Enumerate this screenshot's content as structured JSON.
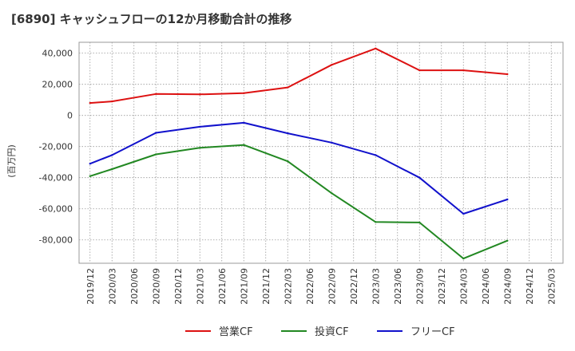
{
  "chart_data": {
    "type": "line",
    "title": "[6890]  キャッシュフローの12か月移動合計の推移",
    "ylabel": "(百万円)",
    "xlabel": "",
    "ylim": [
      -95000,
      47000
    ],
    "y_ticks": [
      40000,
      20000,
      0,
      -20000,
      -40000,
      -60000,
      -80000
    ],
    "y_tick_labels": [
      "40,000",
      "20,000",
      "0",
      "-20,000",
      "-40,000",
      "-60,000",
      "-80,000"
    ],
    "categories": [
      "2019/12",
      "2020/03",
      "2020/06",
      "2020/09",
      "2020/12",
      "2021/03",
      "2021/06",
      "2021/09",
      "2021/12",
      "2022/03",
      "2022/06",
      "2022/09",
      "2022/12",
      "2023/03",
      "2023/06",
      "2023/09",
      "2023/12",
      "2024/03",
      "2024/06",
      "2024/09",
      "2024/12",
      "2025/03"
    ],
    "x_domain": [
      -0.5,
      21.5
    ],
    "legend_position": "bottom",
    "grid": true,
    "series": [
      {
        "name": "営業CF",
        "color": "#dd1111",
        "points": [
          [
            0,
            8000
          ],
          [
            1,
            9000
          ],
          [
            3,
            13800
          ],
          [
            5,
            13500
          ],
          [
            7,
            14300
          ],
          [
            9,
            18000
          ],
          [
            11,
            32500
          ],
          [
            13,
            43000
          ],
          [
            15,
            29000
          ],
          [
            17,
            29000
          ],
          [
            19,
            26500
          ]
        ]
      },
      {
        "name": "投資CF",
        "color": "#228822",
        "points": [
          [
            0,
            -39000
          ],
          [
            1,
            -34500
          ],
          [
            3,
            -25000
          ],
          [
            5,
            -20800
          ],
          [
            7,
            -19000
          ],
          [
            9,
            -29500
          ],
          [
            11,
            -50000
          ],
          [
            13,
            -68500
          ],
          [
            15,
            -68800
          ],
          [
            17,
            -92000
          ],
          [
            19,
            -80500
          ]
        ]
      },
      {
        "name": "フリーCF",
        "color": "#1111cc",
        "points": [
          [
            0,
            -31000
          ],
          [
            1,
            -25500
          ],
          [
            3,
            -11200
          ],
          [
            5,
            -7300
          ],
          [
            7,
            -4700
          ],
          [
            9,
            -11500
          ],
          [
            11,
            -17500
          ],
          [
            13,
            -25500
          ],
          [
            15,
            -40000
          ],
          [
            17,
            -63200
          ],
          [
            19,
            -54000
          ]
        ]
      }
    ]
  }
}
